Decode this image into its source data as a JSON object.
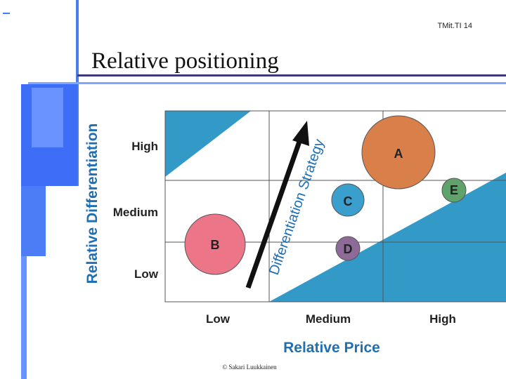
{
  "header": {
    "tag": "TMit.TI 14",
    "title": "Relative positioning"
  },
  "diagram": {
    "y_axis": {
      "label": "Relative Differentiation",
      "levels": [
        "High",
        "Medium",
        "Low"
      ]
    },
    "x_axis": {
      "label": "Relative Price",
      "levels": [
        "Low",
        "Medium",
        "High"
      ]
    },
    "arrow_label": "Differentiation Strategy",
    "bubbles": [
      "A",
      "B",
      "C",
      "D",
      "E"
    ]
  },
  "footer": {
    "credit": "© Sakari Luukkainen"
  }
}
